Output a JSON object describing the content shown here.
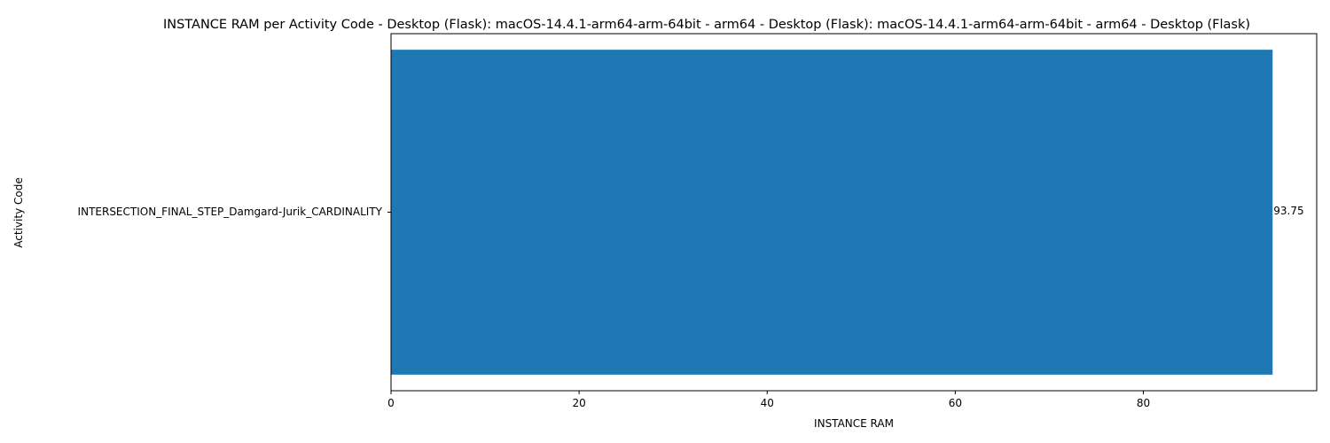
{
  "chart_data": {
    "type": "bar",
    "orientation": "horizontal",
    "title": "INSTANCE RAM per Activity Code - Desktop (Flask): macOS-14.4.1-arm64-arm-64bit - arm64 - Desktop (Flask): macOS-14.4.1-arm64-arm-64bit - arm64 - Desktop (Flask)",
    "xlabel": "INSTANCE RAM",
    "ylabel": "Activity Code",
    "categories": [
      "INTERSECTION_FINAL_STEP_Damgard-Jurik_CARDINALITY"
    ],
    "values": [
      93.75
    ],
    "data_labels": [
      "93.75"
    ],
    "xlim": [
      0,
      98.4375
    ],
    "xticks": [
      0,
      20,
      40,
      60,
      80
    ],
    "grid": false,
    "bar_color": "#1f77b4"
  }
}
